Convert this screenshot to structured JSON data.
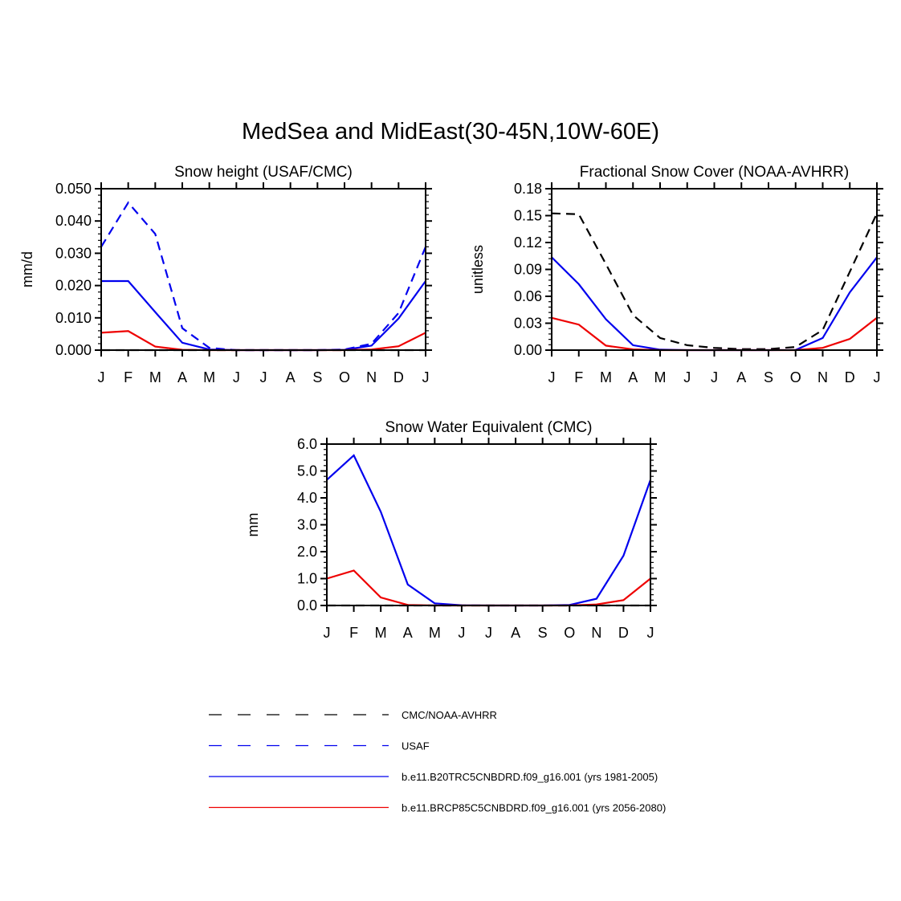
{
  "title": "MedSea and MidEast(30-45N,10W-60E)",
  "colors": {
    "black": "#000000",
    "blue": "#0000ee",
    "red": "#ee0000"
  },
  "chart_data": [
    {
      "id": "snow-height",
      "type": "line",
      "title": "Snow height (USAF/CMC)",
      "ylabel": "mm/d",
      "ylim": [
        0,
        0.05
      ],
      "yticks": [
        "0.000",
        "0.010",
        "0.020",
        "0.030",
        "0.040",
        "0.050"
      ],
      "yminor_step": 0.002,
      "categories": [
        "J",
        "F",
        "M",
        "A",
        "M",
        "J",
        "J",
        "A",
        "S",
        "O",
        "N",
        "D",
        "J"
      ],
      "series": [
        {
          "name": "CMC/NOAA-AVHRR",
          "color": "#000000",
          "dash": true,
          "values": [
            0,
            0,
            0,
            0,
            0,
            0,
            0,
            0,
            0,
            0,
            0,
            0,
            0
          ]
        },
        {
          "name": "USAF",
          "color": "#0000ee",
          "dash": true,
          "values": [
            0.032,
            0.0457,
            0.036,
            0.0068,
            0.0007,
            0,
            0,
            0,
            0,
            0.0002,
            0.002,
            0.0115,
            0.032
          ]
        },
        {
          "name": "b.e11.B20TRC5CNBDRD.f09_g16.001 (yrs 1981-2005)",
          "color": "#0000ee",
          "dash": false,
          "values": [
            0.0214,
            0.0214,
            0.0118,
            0.0023,
            0.0002,
            0,
            0,
            0,
            0,
            0.0001,
            0.0014,
            0.0098,
            0.0214
          ]
        },
        {
          "name": "b.e11.BRCP85C5CNBDRD.f09_g16.001 (yrs 2056-2080)",
          "color": "#ee0000",
          "dash": false,
          "values": [
            0.0054,
            0.0059,
            0.0011,
            0.0001,
            0,
            0,
            0,
            0,
            0,
            0,
            0.0002,
            0.0012,
            0.0054
          ]
        }
      ]
    },
    {
      "id": "fractional-snow-cover",
      "type": "line",
      "title": "Fractional Snow Cover (NOAA-AVHRR)",
      "ylabel": "unitless",
      "ylim": [
        0,
        0.18
      ],
      "yticks": [
        "0.00",
        "0.03",
        "0.06",
        "0.09",
        "0.12",
        "0.15",
        "0.18"
      ],
      "yminor_step": 0.006,
      "categories": [
        "J",
        "F",
        "M",
        "A",
        "M",
        "J",
        "J",
        "A",
        "S",
        "O",
        "N",
        "D",
        "J"
      ],
      "series": [
        {
          "name": "CMC/NOAA-AVHRR",
          "color": "#000000",
          "dash": true,
          "values": [
            0.1525,
            0.1515,
            0.096,
            0.039,
            0.0135,
            0.0055,
            0.0025,
            0.0012,
            0.0012,
            0.0035,
            0.0225,
            0.0875,
            0.1525
          ]
        },
        {
          "name": "b.e11.B20TRC5CNBDRD.f09_g16.001 (yrs 1981-2005)",
          "color": "#0000ee",
          "dash": false,
          "values": [
            0.1035,
            0.0735,
            0.0345,
            0.0055,
            0.0005,
            0,
            0,
            0,
            0,
            0.0002,
            0.0135,
            0.0645,
            0.1035
          ]
        },
        {
          "name": "b.e11.BRCP85C5CNBDRD.f09_g16.001 (yrs 2056-2080)",
          "color": "#ee0000",
          "dash": false,
          "values": [
            0.036,
            0.0285,
            0.005,
            0.0008,
            0,
            0,
            0,
            0,
            0,
            0,
            0.0025,
            0.0125,
            0.036
          ]
        }
      ]
    },
    {
      "id": "snow-water-equivalent",
      "type": "line",
      "title": "Snow Water Equivalent (CMC)",
      "ylabel": "mm",
      "ylim": [
        0,
        6
      ],
      "yticks": [
        "0.0",
        "1.0",
        "2.0",
        "3.0",
        "4.0",
        "5.0",
        "6.0"
      ],
      "yminor_step": 0.2,
      "categories": [
        "J",
        "F",
        "M",
        "A",
        "M",
        "J",
        "J",
        "A",
        "S",
        "O",
        "N",
        "D",
        "J"
      ],
      "series": [
        {
          "name": "CMC/NOAA-AVHRR",
          "color": "#000000",
          "dash": true,
          "values": [
            0,
            0,
            0,
            0,
            0,
            0,
            0,
            0,
            0,
            0,
            0,
            0,
            0
          ]
        },
        {
          "name": "b.e11.B20TRC5CNBDRD.f09_g16.001 (yrs 1981-2005)",
          "color": "#0000ee",
          "dash": false,
          "values": [
            4.67,
            5.58,
            3.48,
            0.78,
            0.08,
            0.01,
            0,
            0,
            0,
            0.02,
            0.25,
            1.85,
            4.67
          ]
        },
        {
          "name": "b.e11.BRCP85C5CNBDRD.f09_g16.001 (yrs 2056-2080)",
          "color": "#ee0000",
          "dash": false,
          "values": [
            1.0,
            1.3,
            0.3,
            0.02,
            0,
            0,
            0,
            0,
            0,
            0,
            0.04,
            0.2,
            1.0
          ]
        }
      ]
    }
  ],
  "legend": [
    {
      "label": "CMC/NOAA-AVHRR",
      "color": "#000000",
      "dash": true
    },
    {
      "label": "USAF",
      "color": "#0000ee",
      "dash": true
    },
    {
      "label": "b.e11.B20TRC5CNBDRD.f09_g16.001 (yrs 1981-2005)",
      "color": "#0000ee",
      "dash": false
    },
    {
      "label": "b.e11.BRCP85C5CNBDRD.f09_g16.001 (yrs 2056-2080)",
      "color": "#ee0000",
      "dash": false
    }
  ]
}
